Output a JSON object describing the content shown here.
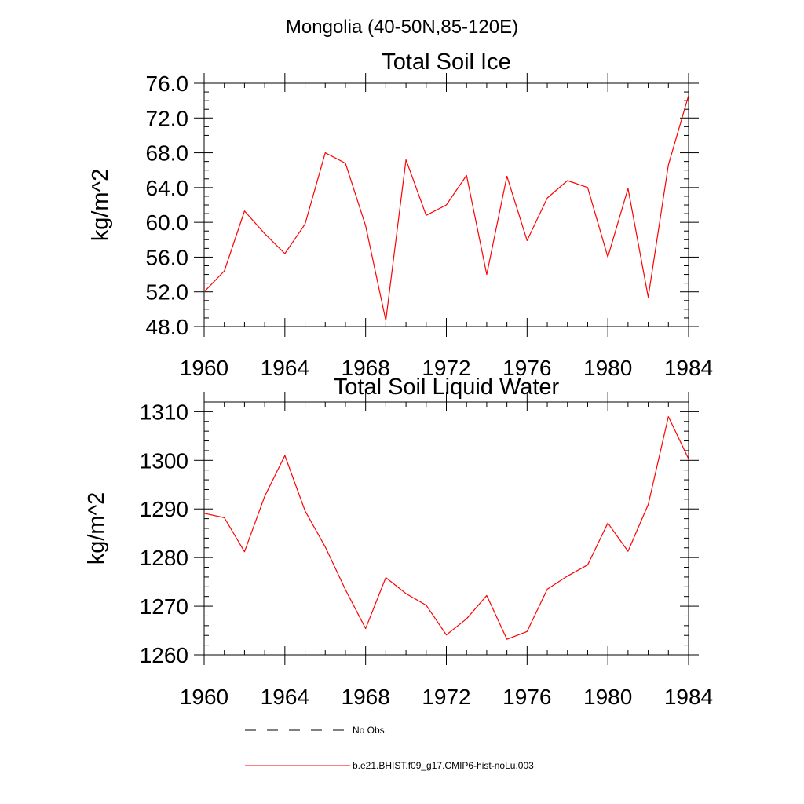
{
  "figure_title": "Mongolia (40-50N,85-120E)",
  "legend": {
    "position": "bottom",
    "entries": [
      {
        "label": "No Obs",
        "style": "dashed",
        "color": "#000000"
      },
      {
        "label": "b.e21.BHIST.f09_g17.CMIP6-hist-noLu.003",
        "style": "solid",
        "color": "#ff0000"
      }
    ]
  },
  "chart_data": [
    {
      "type": "line",
      "title": "Total Soil Ice",
      "xlabel": "",
      "ylabel": "kg/m^2",
      "xlim": [
        1960,
        1984
      ],
      "ylim": [
        48,
        76
      ],
      "xticks": [
        "1960",
        "1964",
        "1968",
        "1972",
        "1976",
        "1980",
        "1984"
      ],
      "yticks": [
        "48.0",
        "52.0",
        "56.0",
        "60.0",
        "64.0",
        "68.0",
        "72.0",
        "76.0"
      ],
      "grid": false,
      "series": [
        {
          "color": "#ff0000",
          "x": [
            1960,
            1961,
            1962,
            1963,
            1964,
            1965,
            1966,
            1967,
            1968,
            1969,
            1970,
            1971,
            1972,
            1973,
            1974,
            1975,
            1976,
            1977,
            1978,
            1979,
            1980,
            1981,
            1982,
            1983,
            1984
          ],
          "values": [
            52.0,
            54.4,
            61.3,
            58.7,
            56.4,
            59.8,
            68.0,
            66.8,
            59.6,
            48.7,
            67.2,
            60.8,
            62.0,
            65.4,
            54.0,
            65.3,
            57.9,
            62.8,
            64.8,
            64.0,
            56.0,
            63.9,
            51.4,
            66.6,
            74.6
          ]
        }
      ]
    },
    {
      "type": "line",
      "title": "Total Soil Liquid Water",
      "xlabel": "",
      "ylabel": "kg/m^2",
      "xlim": [
        1960,
        1984
      ],
      "ylim": [
        1260,
        1312
      ],
      "xticks": [
        "1960",
        "1964",
        "1968",
        "1972",
        "1976",
        "1980",
        "1984"
      ],
      "yticks": [
        "1260",
        "1270",
        "1280",
        "1290",
        "1300",
        "1310"
      ],
      "grid": false,
      "series": [
        {
          "color": "#ff0000",
          "x": [
            1960,
            1961,
            1962,
            1963,
            1964,
            1965,
            1966,
            1967,
            1968,
            1969,
            1970,
            1971,
            1972,
            1973,
            1974,
            1975,
            1976,
            1977,
            1978,
            1979,
            1980,
            1981,
            1982,
            1983,
            1984
          ],
          "values": [
            1289.1,
            1288.2,
            1281.2,
            1292.6,
            1301.0,
            1289.6,
            1282.2,
            1273.4,
            1265.4,
            1275.9,
            1272.6,
            1270.2,
            1264.1,
            1267.4,
            1272.2,
            1263.2,
            1264.8,
            1273.5,
            1276.2,
            1278.5,
            1287.1,
            1281.3,
            1290.9,
            1309.0,
            1300.3
          ]
        }
      ]
    }
  ]
}
